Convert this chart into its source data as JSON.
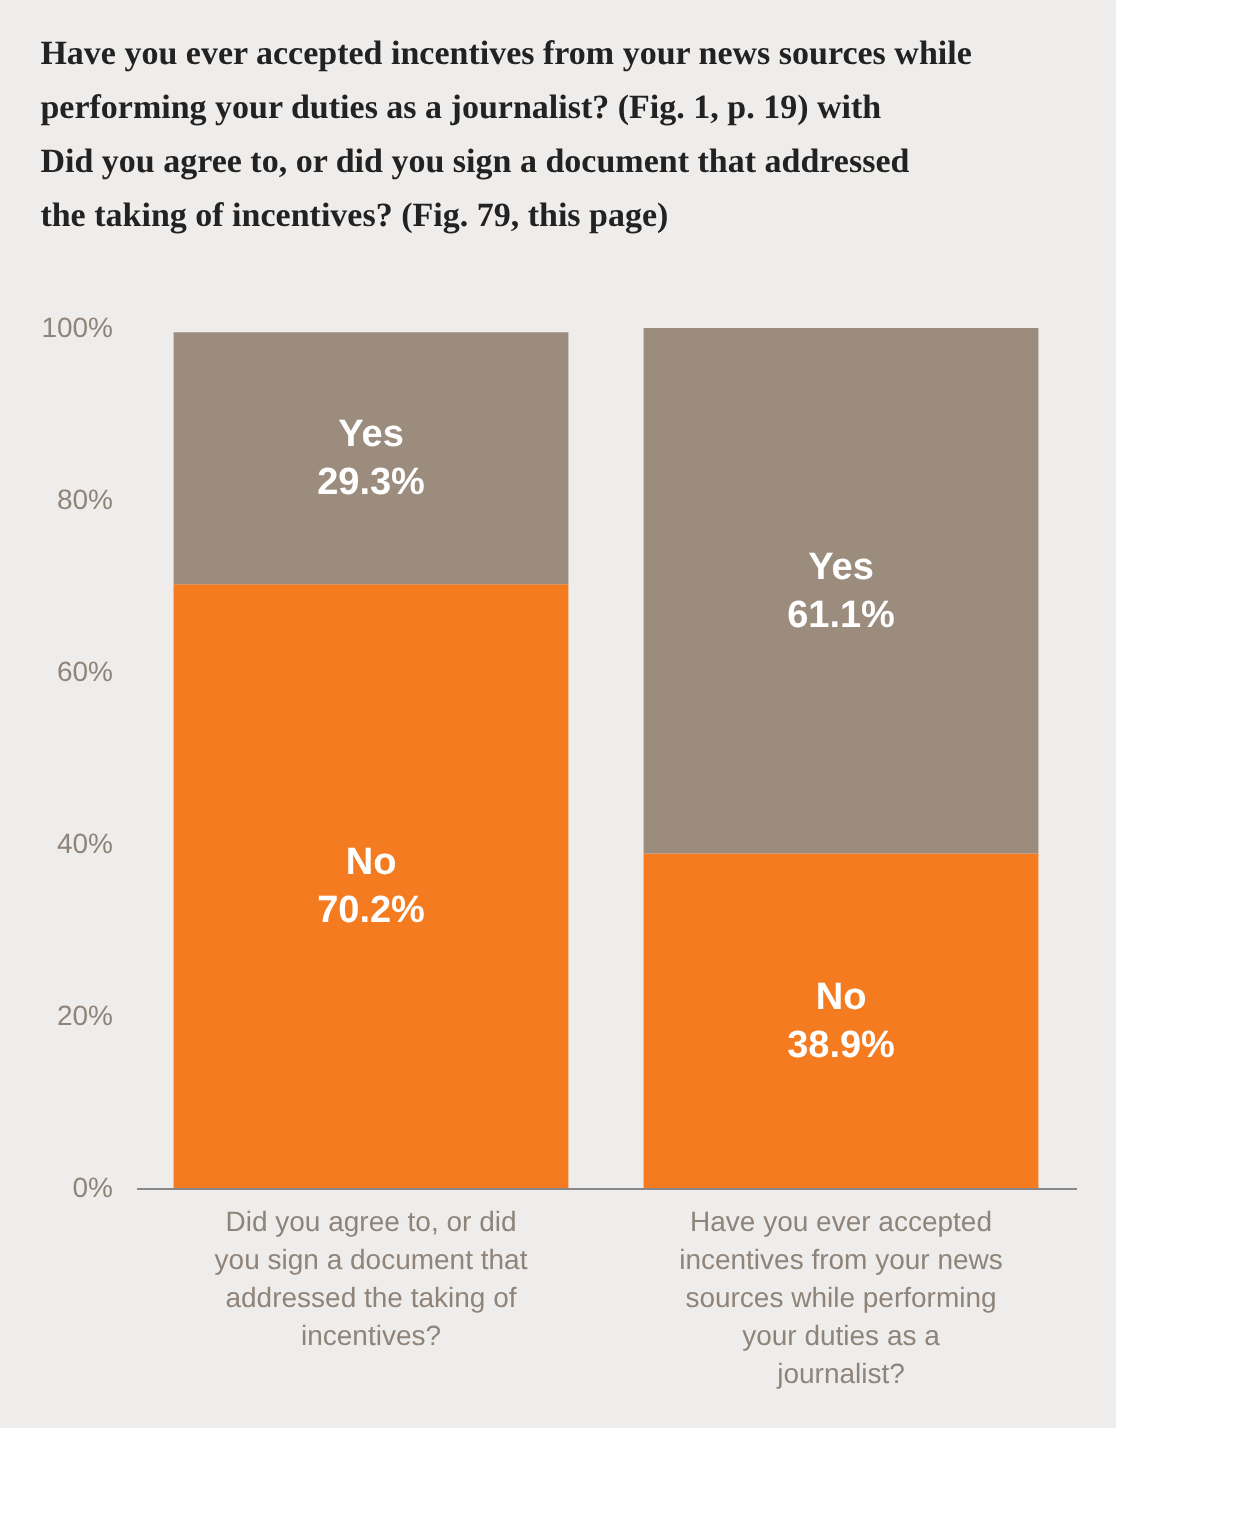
{
  "chart_data": {
    "type": "bar",
    "stacked": true,
    "title": "Have you ever accepted incentives from your news sources while performing your duties as a journalist? (Fig. 1, p. 19) with Did you agree to, or did you sign a document that addressed the taking of incentives? (Fig. 79, this page)",
    "categories": [
      "Did you agree to, or did you sign a document that addressed the taking of incentives?",
      "Have you ever accepted incentives from your news sources while performing your duties as a journalist?"
    ],
    "series": [
      {
        "name": "No",
        "color": "#f47b20",
        "values": [
          70.2,
          38.9
        ],
        "value_labels": [
          "70.2%",
          "38.9%"
        ]
      },
      {
        "name": "Yes",
        "color": "#9b8c7e",
        "values": [
          29.3,
          61.1
        ],
        "value_labels": [
          "29.3%",
          "61.1%"
        ]
      }
    ],
    "ylim": [
      0,
      100
    ],
    "yticks": [
      {
        "value": 0,
        "label": "0%"
      },
      {
        "value": 20,
        "label": "20%"
      },
      {
        "value": 40,
        "label": "40%"
      },
      {
        "value": 60,
        "label": "60%"
      },
      {
        "value": 80,
        "label": "80%"
      },
      {
        "value": 100,
        "label": "100%"
      }
    ],
    "grid": false
  }
}
